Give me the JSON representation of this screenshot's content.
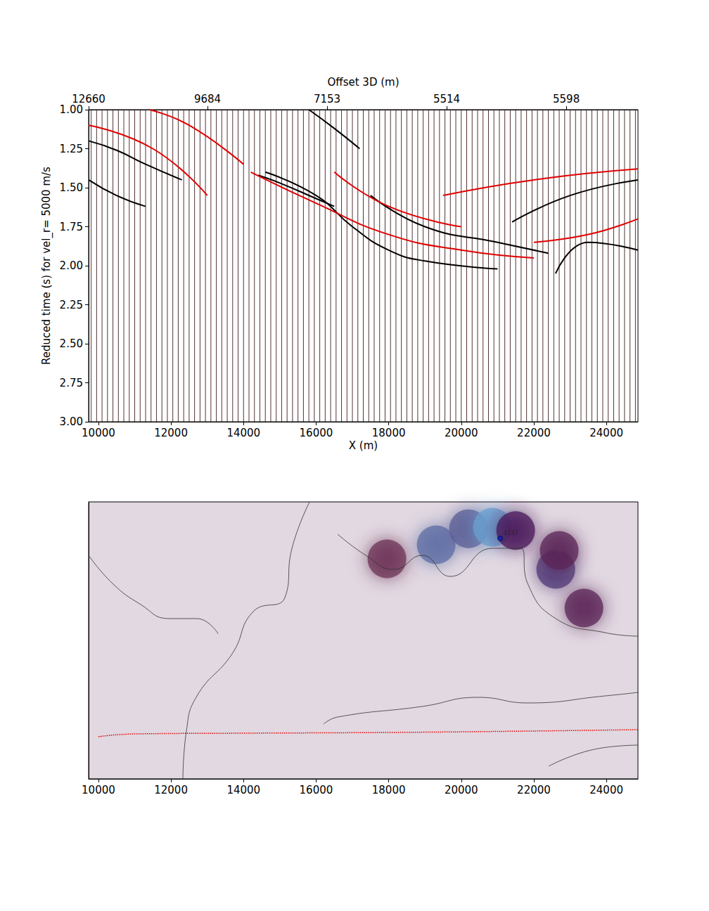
{
  "chart_data": [
    {
      "type": "line",
      "x_label": "X (m)",
      "y_label": "Reduced time (s) for vel_r= 5000 m/s",
      "x2_label": "Offset 3D (m)",
      "xlim": [
        9730,
        24870
      ],
      "xticks": [
        10000,
        12000,
        14000,
        16000,
        18000,
        20000,
        22000,
        24000
      ],
      "x2ticks": [
        {
          "value": 9730,
          "label": "12660"
        },
        {
          "value": 13006,
          "label": "9684"
        },
        {
          "value": 16302,
          "label": "7153"
        },
        {
          "value": 19598,
          "label": "5514"
        },
        {
          "value": 22895,
          "label": "5598"
        }
      ],
      "ylim": [
        1,
        3
      ],
      "yticks": [
        {
          "value": 1,
          "label": "1.00"
        },
        {
          "value": 1.25,
          "label": "1.25"
        },
        {
          "value": 1.5,
          "label": "1.50"
        },
        {
          "value": 1.75,
          "label": "1.75"
        },
        {
          "value": 2,
          "label": "2.00"
        },
        {
          "value": 2.25,
          "label": "2.25"
        },
        {
          "value": 2.5,
          "label": "2.50"
        },
        {
          "value": 2.75,
          "label": "2.75"
        },
        {
          "value": 3,
          "label": "3.00"
        }
      ],
      "traces": {
        "color": "#2a0000",
        "x": [
          9800,
          9950,
          10100,
          10250,
          10400,
          10550,
          10700,
          10850,
          11000,
          11150,
          11300,
          11450,
          11600,
          11750,
          11900,
          12050,
          12200,
          12350,
          12500,
          12650,
          12800,
          12950,
          13100,
          13250,
          13400,
          13550,
          13700,
          13850,
          14000,
          14150,
          14300,
          14450,
          14600,
          14750,
          14900,
          15050,
          15200,
          15350,
          15500,
          15650,
          15800,
          15950,
          16100,
          16250,
          16400,
          16550,
          16700,
          16850,
          17000,
          17150,
          17300,
          17450,
          17600,
          17750,
          17900,
          18050,
          18200,
          18350,
          18500,
          18650,
          18800,
          18950,
          19100,
          19250,
          19400,
          19550,
          19700,
          19850,
          20000,
          20150,
          20300,
          20450,
          20600,
          20750,
          20900,
          21050,
          21200,
          21350,
          21500,
          21650,
          21800,
          21950,
          22100,
          22250,
          22400,
          22550,
          22700,
          22850,
          23000,
          23150,
          23300,
          23450,
          23600,
          23750,
          23900,
          24050,
          24200,
          24350,
          24500,
          24650,
          24800
        ]
      },
      "series": [
        {
          "color": "#000000",
          "line_style": "solid",
          "x": [
            9730,
            10500,
            11300,
            12300
          ],
          "values": [
            1.2,
            1.26,
            1.35,
            1.45
          ]
        },
        {
          "color": "#000000",
          "line_style": "solid",
          "x": [
            9730,
            10500,
            11300
          ],
          "values": [
            1.45,
            1.55,
            1.62
          ]
        },
        {
          "color": "#000000",
          "line_style": "solid",
          "x": [
            15800,
            16500,
            17200
          ],
          "values": [
            1.0,
            1.12,
            1.25
          ]
        },
        {
          "color": "#000000",
          "line_style": "solid",
          "x": [
            14400,
            15000,
            16000,
            16500
          ],
          "values": [
            1.42,
            1.47,
            1.57,
            1.62
          ]
        },
        {
          "color": "#000000",
          "line_style": "solid",
          "x": [
            14600,
            16000,
            17000,
            18000,
            19000,
            21000
          ],
          "values": [
            1.4,
            1.55,
            1.75,
            1.9,
            1.97,
            2.02
          ]
        },
        {
          "color": "#000000",
          "line_style": "solid",
          "x": [
            17500,
            19000,
            21000,
            22400
          ],
          "values": [
            1.55,
            1.75,
            1.85,
            1.92
          ]
        },
        {
          "color": "#000000",
          "line_style": "solid",
          "x": [
            21400,
            23000,
            24870
          ],
          "values": [
            1.72,
            1.55,
            1.45
          ]
        },
        {
          "color": "#000000",
          "line_style": "solid",
          "x": [
            22600,
            23500,
            24870
          ],
          "values": [
            2.05,
            1.85,
            1.9
          ]
        },
        {
          "color": "#e00000",
          "line_style": "solid",
          "x": [
            9730,
            11500,
            13000
          ],
          "values": [
            1.1,
            1.25,
            1.55
          ]
        },
        {
          "color": "#e00000",
          "line_style": "solid",
          "x": [
            11400,
            12500,
            14000
          ],
          "values": [
            1.0,
            1.1,
            1.35
          ]
        },
        {
          "color": "#e00000",
          "line_style": "solid",
          "x": [
            14200,
            16000,
            18000,
            20000,
            22000
          ],
          "values": [
            1.4,
            1.6,
            1.8,
            1.9,
            1.95
          ]
        },
        {
          "color": "#e00000",
          "line_style": "solid",
          "x": [
            16500,
            18000,
            20000
          ],
          "values": [
            1.4,
            1.62,
            1.75
          ]
        },
        {
          "color": "#e00000",
          "line_style": "solid",
          "x": [
            19500,
            22000,
            24870
          ],
          "values": [
            1.55,
            1.45,
            1.38
          ]
        },
        {
          "color": "#e00000",
          "line_style": "solid",
          "x": [
            22000,
            23500,
            24870
          ],
          "values": [
            1.85,
            1.8,
            1.7
          ]
        }
      ]
    },
    {
      "type": "map",
      "tick_labels": "x",
      "xlim": [
        9730,
        24870
      ],
      "xticks": [
        10000,
        12000,
        14000,
        16000,
        18000,
        20000,
        22000,
        24000
      ],
      "ylim": [
        0,
        7640
      ],
      "coastlines": [
        {
          "x": [
            15819,
            15334,
            15140,
            14267,
            13686,
            12716,
            12425,
            12328
          ],
          "y": [
            7640,
            6360,
            5003,
            4615,
            3451,
            2288,
            1319,
            0
          ]
        },
        {
          "x": [
            9730,
            10389,
            11165,
            11941,
            12716,
            13300
          ],
          "y": [
            6166,
            5390,
            4809,
            4421,
            4421,
            4000
          ]
        },
        {
          "x": [
            16594,
            17370,
            18145,
            18921,
            19697,
            20860,
            21636,
            21830,
            22605,
            23963,
            24874
          ],
          "y": [
            6748,
            6166,
            5778,
            6166,
            5584,
            6360,
            6360,
            5390,
            4421,
            4033,
            3936
          ]
        },
        {
          "x": [
            16206,
            16594,
            18921,
            20472,
            21830,
            23963,
            24874
          ],
          "y": [
            1512,
            1706,
            1997,
            2249,
            2094,
            2288,
            2385
          ]
        },
        {
          "x": [
            22411,
            23768,
            24874
          ],
          "y": [
            349,
            834,
            931
          ]
        }
      ],
      "track": {
        "color": "#e00000",
        "line_style": "dotted",
        "x": [
          10000,
          11000,
          14000,
          18000,
          22000,
          24870
        ],
        "y": [
          1163,
          1240,
          1260,
          1280,
          1320,
          1357
        ]
      },
      "hotspots": {
        "x": [
          19309,
          20200,
          20860,
          21500,
          22605,
          22700,
          23381,
          17952
        ],
        "y": [
          6457,
          6900,
          6942,
          6850,
          5778,
          6300,
          4712,
          6069
        ],
        "values": [
          0.85,
          0.8,
          1.0,
          0.6,
          0.7,
          0.5,
          0.5,
          0.4
        ]
      },
      "station": {
        "x": 21073,
        "y": 6631,
        "label": "4137",
        "color": "#1020c0"
      }
    }
  ]
}
